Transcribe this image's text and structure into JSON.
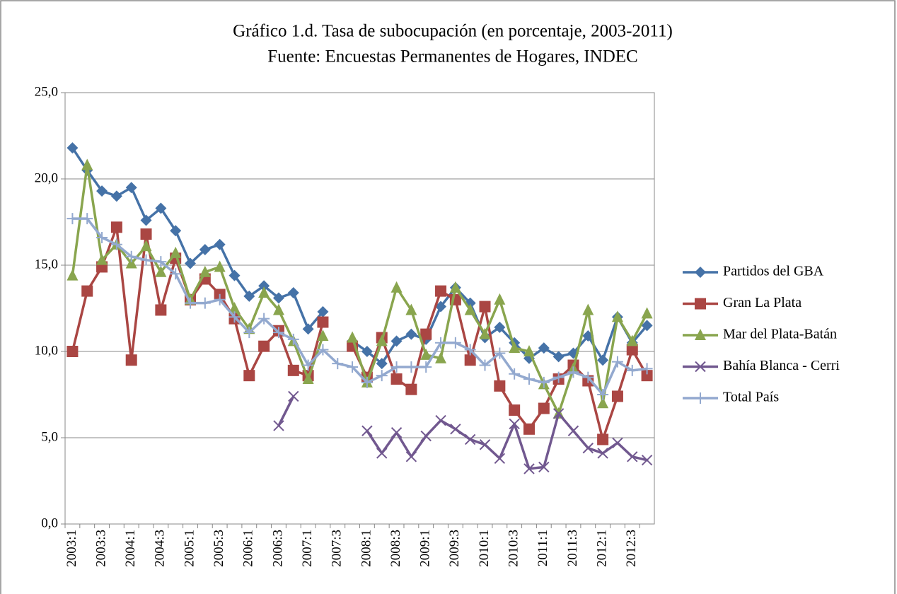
{
  "chart_data": {
    "type": "line",
    "title": "Gráfico 1.d. Tasa de subocupación (en porcentaje, 2003-2011)",
    "subtitle": "Fuente: Encuestas Permanentes de Hogares, INDEC",
    "categories": [
      "2003:1",
      null,
      "2003:3",
      null,
      "2004:1",
      null,
      "2004:3",
      null,
      "2005:1",
      null,
      "2005:3",
      null,
      "2006:1",
      null,
      "2006:3",
      null,
      "2007:1",
      null,
      "2007:3",
      null,
      "2008:1",
      null,
      "2008:3",
      null,
      "2009:1",
      null,
      "2009:3",
      null,
      "2010:1",
      null,
      "2010:3",
      null,
      "2011:1",
      null,
      "2011:3",
      null,
      "2012:1",
      null,
      "2012:3",
      null
    ],
    "ylim": [
      0,
      25
    ],
    "yticks": [
      {
        "value": 0,
        "label": "0,0"
      },
      {
        "value": 5,
        "label": "5,0"
      },
      {
        "value": 10,
        "label": "10,0"
      },
      {
        "value": 15,
        "label": "15,0"
      },
      {
        "value": 20,
        "label": "20,0"
      },
      {
        "value": 25,
        "label": "25,0"
      }
    ],
    "grid": true,
    "legend": "right",
    "series": [
      {
        "name": "Partidos del GBA",
        "color": "#4572a7",
        "marker": "diamond",
        "values": [
          21.8,
          20.5,
          19.3,
          19.0,
          19.5,
          17.6,
          18.3,
          17.0,
          15.1,
          15.9,
          16.2,
          14.4,
          13.2,
          13.8,
          13.1,
          13.4,
          11.3,
          12.3,
          null,
          10.6,
          10.0,
          9.3,
          10.6,
          11.0,
          10.7,
          12.6,
          13.7,
          12.8,
          10.8,
          11.4,
          10.5,
          9.6,
          10.2,
          9.7,
          9.9,
          10.9,
          9.5,
          12.0,
          10.5,
          11.5
        ]
      },
      {
        "name": "Gran La Plata",
        "color": "#aa4643",
        "marker": "square",
        "values": [
          10.0,
          13.5,
          14.9,
          17.2,
          9.5,
          16.8,
          12.4,
          15.4,
          13.0,
          14.2,
          13.3,
          11.9,
          8.6,
          10.3,
          11.2,
          8.9,
          8.6,
          11.7,
          null,
          10.3,
          8.5,
          10.8,
          8.4,
          7.8,
          11.0,
          13.5,
          13.0,
          9.5,
          12.6,
          8.0,
          6.6,
          5.5,
          6.7,
          8.4,
          9.2,
          8.3,
          4.9,
          7.4,
          10.1,
          8.6
        ]
      },
      {
        "name": "Mar del Plata-Batán",
        "color": "#89a54e",
        "marker": "triangle",
        "values": [
          14.4,
          20.8,
          15.3,
          16.2,
          15.1,
          16.1,
          14.6,
          15.7,
          13.0,
          14.6,
          14.9,
          12.5,
          11.3,
          13.4,
          12.4,
          10.6,
          8.4,
          10.9,
          null,
          10.8,
          8.2,
          10.6,
          13.7,
          12.4,
          9.8,
          9.6,
          13.7,
          12.4,
          11.0,
          13.0,
          10.2,
          10.0,
          8.1,
          6.4,
          9.0,
          12.4,
          7.0,
          12.0,
          10.6,
          12.2
        ]
      },
      {
        "name": "Bahía Blanca - Cerri",
        "color": "#71588f",
        "marker": "x",
        "values": [
          null,
          null,
          null,
          null,
          null,
          null,
          null,
          null,
          null,
          null,
          null,
          null,
          null,
          null,
          5.7,
          7.4,
          null,
          null,
          null,
          null,
          5.4,
          4.1,
          5.3,
          3.9,
          5.1,
          6.0,
          5.5,
          4.9,
          4.6,
          3.8,
          5.8,
          3.2,
          3.3,
          6.4,
          5.4,
          4.4,
          4.1,
          4.7,
          3.9,
          3.7
        ]
      },
      {
        "name": "Total País",
        "color": "#93a9cf",
        "marker": "plus",
        "values": [
          17.7,
          17.7,
          16.6,
          16.2,
          15.5,
          15.3,
          15.2,
          14.5,
          12.8,
          12.8,
          13.0,
          12.0,
          11.1,
          11.9,
          11.1,
          10.7,
          9.2,
          10.1,
          9.3,
          9.1,
          8.2,
          8.6,
          9.1,
          9.1,
          9.1,
          10.5,
          10.5,
          10.1,
          9.2,
          9.9,
          8.7,
          8.4,
          8.2,
          8.5,
          8.8,
          8.5,
          7.5,
          9.4,
          8.9,
          9.0
        ]
      }
    ]
  }
}
